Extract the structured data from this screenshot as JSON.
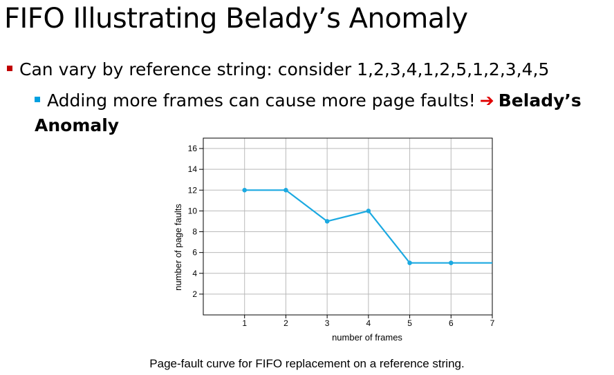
{
  "slide": {
    "title": "FIFO Illustrating Belady’s Anomaly",
    "bullet1": "Can vary by reference string: consider 1,2,3,4,1,2,5,1,2,3,4,5",
    "bullet2_text": "Adding more frames can cause more page faults!",
    "arrow_icon": "➔",
    "bullet2_emph": "Belady’s Anomaly",
    "caption": "Page-fault curve for FIFO replacement on a reference string."
  },
  "colors": {
    "line": "#1ba9e1",
    "bullet1": "#c00000",
    "bullet2": "#00a0e0",
    "arrow": "#e00000"
  },
  "chart_data": {
    "type": "line",
    "title": "",
    "xlabel": "number of frames",
    "ylabel": "number of page faults",
    "x": [
      1,
      2,
      3,
      4,
      5,
      6,
      7
    ],
    "xticks": [
      "1",
      "2",
      "3",
      "4",
      "5",
      "6",
      "7"
    ],
    "yticks": [
      "2",
      "4",
      "6",
      "8",
      "10",
      "12",
      "14",
      "16"
    ],
    "xlim": [
      0,
      7
    ],
    "ylim": [
      0,
      17
    ],
    "grid": true,
    "series": [
      {
        "values": [
          12,
          12,
          9,
          10,
          5,
          5,
          5
        ],
        "markers_at": [
          1,
          2,
          3,
          4,
          5,
          6
        ]
      }
    ]
  }
}
